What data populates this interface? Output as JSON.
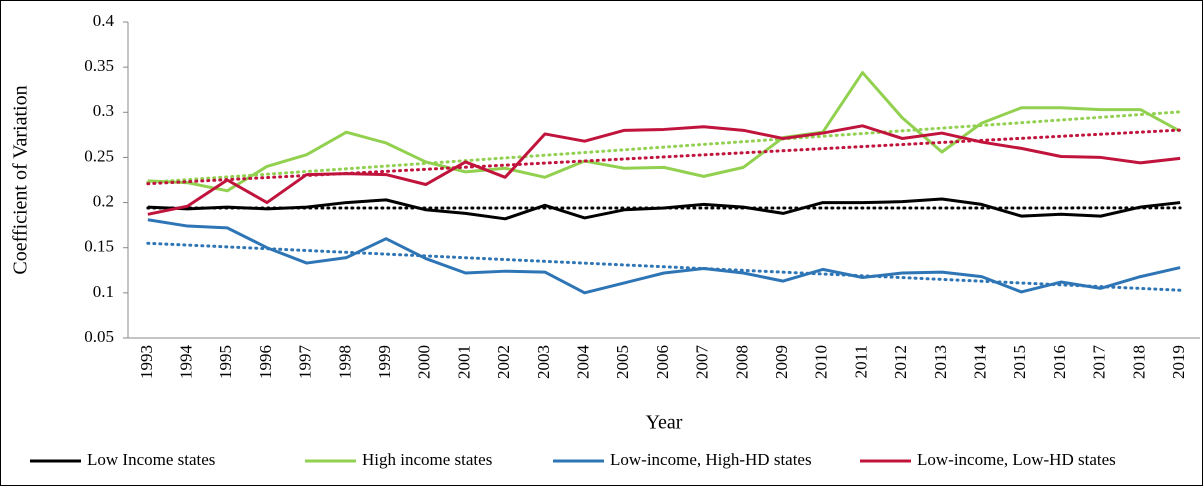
{
  "chart_data": {
    "type": "line",
    "y_label": "Coefficient of Variation",
    "x_label": "Year",
    "categories": [
      "1993",
      "1994",
      "1995",
      "1996",
      "1997",
      "1998",
      "1999",
      "2000",
      "2001",
      "2002",
      "2003",
      "2004",
      "2005",
      "2006",
      "2007",
      "2008",
      "2009",
      "2010",
      "2011",
      "2012",
      "2013",
      "2014",
      "2015",
      "2016",
      "2017",
      "2018",
      "2019"
    ],
    "series": [
      {
        "name": "Low Income states",
        "color": "#000000",
        "values": [
          0.195,
          0.193,
          0.195,
          0.193,
          0.195,
          0.2,
          0.203,
          0.192,
          0.188,
          0.182,
          0.197,
          0.183,
          0.192,
          0.194,
          0.198,
          0.195,
          0.188,
          0.2,
          0.2,
          0.201,
          0.204,
          0.198,
          0.185,
          0.187,
          0.185,
          0.195,
          0.2
        ]
      },
      {
        "name": "High income states",
        "color": "#92d050",
        "values": [
          0.224,
          0.222,
          0.213,
          0.24,
          0.253,
          0.278,
          0.266,
          0.245,
          0.234,
          0.238,
          0.228,
          0.246,
          0.238,
          0.239,
          0.229,
          0.239,
          0.272,
          0.278,
          0.344,
          0.294,
          0.256,
          0.288,
          0.305,
          0.305,
          0.303,
          0.303,
          0.279
        ]
      },
      {
        "name": "Low-income, High-HD states",
        "color": "#2e75b6",
        "values": [
          0.181,
          0.174,
          0.172,
          0.15,
          0.133,
          0.139,
          0.16,
          0.138,
          0.122,
          0.124,
          0.123,
          0.1,
          0.111,
          0.122,
          0.127,
          0.122,
          0.113,
          0.126,
          0.117,
          0.122,
          0.123,
          0.118,
          0.101,
          0.112,
          0.105,
          0.118,
          0.128
        ]
      },
      {
        "name": "Low-income, Low-HD states",
        "color": "#c0143c",
        "values": [
          0.187,
          0.196,
          0.225,
          0.2,
          0.231,
          0.232,
          0.231,
          0.22,
          0.245,
          0.228,
          0.276,
          0.268,
          0.28,
          0.281,
          0.284,
          0.28,
          0.271,
          0.277,
          0.285,
          0.271,
          0.277,
          0.267,
          0.26,
          0.251,
          0.25,
          0.244,
          0.249
        ]
      }
    ],
    "trendline": "linear",
    "ylim": [
      0.05,
      0.4
    ],
    "yticks": [
      0.05,
      0.1,
      0.15,
      0.2,
      0.25,
      0.3,
      0.35,
      0.4
    ],
    "legend": "bottom"
  }
}
